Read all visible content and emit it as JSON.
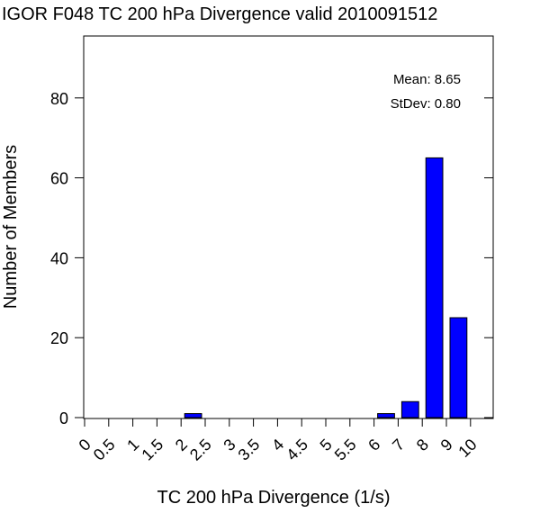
{
  "chart_data": {
    "type": "bar",
    "title": "IGOR F048 TC 200 hPa Divergence valid 2010091512",
    "xlabel": "TC 200 hPa Divergence (1/s)",
    "ylabel": "Number of Members",
    "x_tick_labels": [
      "0",
      "0.5",
      "1",
      "1.5",
      "2",
      "2.5",
      "3",
      "3.5",
      "4",
      "4.5",
      "5",
      "5.5",
      "6",
      "7",
      "8",
      "9",
      "10"
    ],
    "y_ticks": [
      0,
      20,
      40,
      60,
      80
    ],
    "ylim": [
      0,
      96
    ],
    "bars": [
      {
        "x_from": "2",
        "x_to": "2.5",
        "value": 1
      },
      {
        "x_from": "6",
        "x_to": "7",
        "value": 1
      },
      {
        "x_from": "7",
        "x_to": "8",
        "value": 4
      },
      {
        "x_from": "8",
        "x_to": "9",
        "value": 65
      },
      {
        "x_from": "9",
        "x_to": "10",
        "value": 25
      }
    ],
    "bar_color": "#0000ff",
    "grid": false,
    "stats": {
      "mean_text": "Mean: 8.65",
      "stdev_text": "StDev: 0.80"
    },
    "stats_placement": "top-right"
  }
}
